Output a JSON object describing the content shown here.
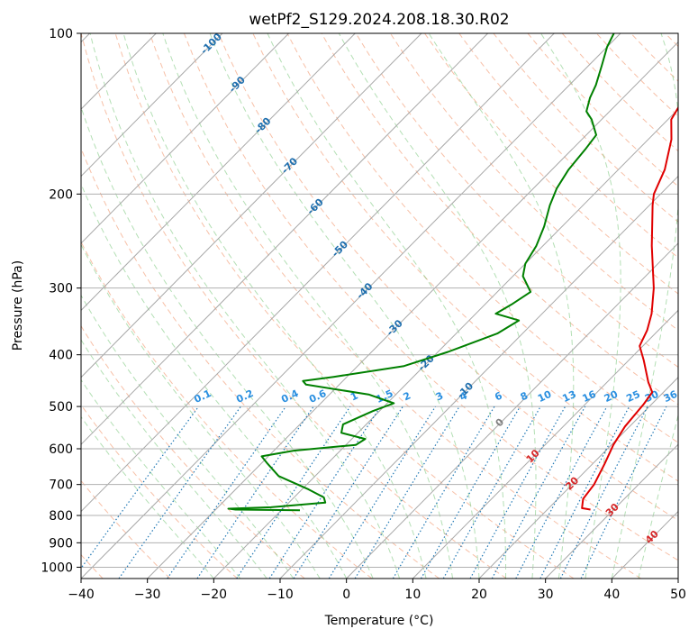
{
  "chart_data": {
    "type": "line",
    "title": "wetPf2_S129.2024.208.18.30.R02",
    "xlabel": "Temperature (°C)",
    "ylabel": "Pressure (hPa)",
    "xlim": [
      -40,
      50
    ],
    "ylim": [
      1050,
      100
    ],
    "y_scale": "log",
    "x_ticks": [
      -40,
      -30,
      -20,
      -10,
      0,
      10,
      20,
      30,
      40,
      50
    ],
    "y_ticks": [
      100,
      200,
      300,
      400,
      500,
      600,
      700,
      800,
      900,
      1000
    ],
    "grid": true,
    "skew": true,
    "colors": {
      "temperature": "#e00000",
      "dewpoint": "#008000",
      "dry_adiabat": "#f4a582",
      "moist_adiabat": "#74c476",
      "mixing_ratio": "#1f77b4",
      "isotherm": "#a0a0a0"
    },
    "series": [
      {
        "color": "#e00000",
        "points": [
          [
            26.5,
            780
          ],
          [
            25.0,
            775
          ],
          [
            23.8,
            745
          ],
          [
            23.3,
            700
          ],
          [
            21.8,
            640
          ],
          [
            20.3,
            590
          ],
          [
            19.3,
            545
          ],
          [
            18.8,
            495
          ],
          [
            18.3,
            470
          ],
          [
            16.2,
            450
          ],
          [
            12.3,
            410
          ],
          [
            9.5,
            385
          ],
          [
            8.3,
            360
          ],
          [
            6.5,
            335
          ],
          [
            3.0,
            300
          ],
          [
            -3.6,
            250
          ],
          [
            -9.5,
            210
          ],
          [
            -11.0,
            200
          ],
          [
            -13.0,
            180
          ],
          [
            -16.5,
            158
          ],
          [
            -19.5,
            145
          ],
          [
            -20.0,
            140
          ],
          [
            -21.0,
            130
          ],
          [
            -22.3,
            115
          ],
          [
            -23.0,
            108
          ],
          [
            -24.5,
            100
          ]
        ]
      },
      {
        "color": "#008000",
        "points": [
          [
            -17.2,
            782
          ],
          [
            -27.0,
            780
          ],
          [
            -28.2,
            777
          ],
          [
            -22.0,
            772
          ],
          [
            -14.5,
            757
          ],
          [
            -15.5,
            740
          ],
          [
            -19.0,
            715
          ],
          [
            -25.5,
            675
          ],
          [
            -29.0,
            640
          ],
          [
            -31.0,
            620
          ],
          [
            -27.0,
            605
          ],
          [
            -18.5,
            590
          ],
          [
            -18.0,
            575
          ],
          [
            -22.5,
            560
          ],
          [
            -23.5,
            540
          ],
          [
            -21.0,
            510
          ],
          [
            -19.0,
            493
          ],
          [
            -24.0,
            475
          ],
          [
            -35.0,
            455
          ],
          [
            -36.0,
            448
          ],
          [
            -32.0,
            440
          ],
          [
            -23.0,
            420
          ],
          [
            -18.5,
            395
          ],
          [
            -13.8,
            365
          ],
          [
            -12.5,
            345
          ],
          [
            -17.0,
            335
          ],
          [
            -16.0,
            322
          ],
          [
            -15.0,
            305
          ],
          [
            -18.5,
            285
          ],
          [
            -20.0,
            270
          ],
          [
            -21.0,
            250
          ],
          [
            -22.7,
            230
          ],
          [
            -25.0,
            210
          ],
          [
            -26.5,
            195
          ],
          [
            -27.5,
            180
          ],
          [
            -28.0,
            165
          ],
          [
            -28.5,
            155
          ],
          [
            -31.5,
            145
          ],
          [
            -33.5,
            140
          ],
          [
            -35.0,
            132
          ],
          [
            -36.0,
            125
          ],
          [
            -38.0,
            115
          ],
          [
            -40.0,
            106
          ],
          [
            -41.0,
            100
          ]
        ]
      }
    ],
    "isotherm_labels": [
      "-100",
      "-90",
      "-80",
      "-70",
      "-60",
      "-50",
      "-40",
      "-30",
      "-20",
      "-10",
      "0",
      "10",
      "20",
      "30",
      "40"
    ],
    "mixing_ratio_labels": [
      "0.1",
      "0.2",
      "0.4",
      "0.6",
      "1",
      "1.5",
      "2",
      "3",
      "4",
      "6",
      "8",
      "10",
      "13",
      "16",
      "20",
      "25",
      "30",
      "36"
    ]
  }
}
